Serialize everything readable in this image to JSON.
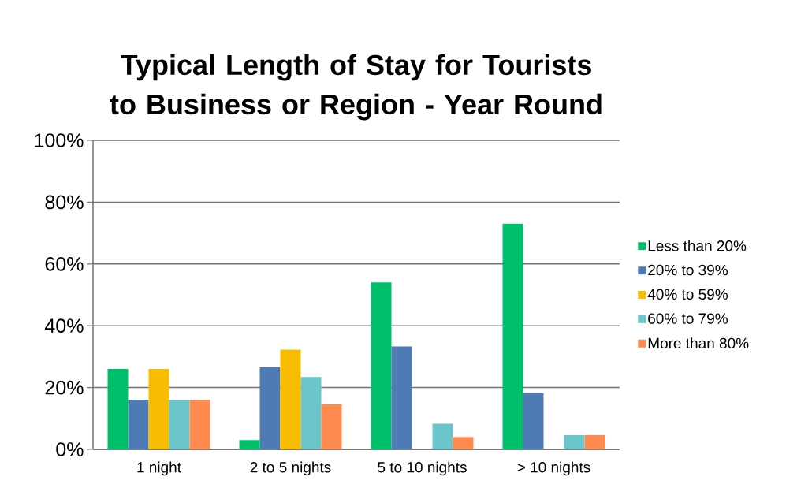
{
  "chart_data": {
    "type": "bar",
    "title": "Typical Length of Stay for Tourists to Business or Region - Year Round",
    "categories": [
      "1 night",
      "2 to 5 nights",
      "5 to 10 nights",
      "> 10 nights"
    ],
    "series": [
      {
        "name": "Less than 20%",
        "color": "#00bf6a",
        "values": [
          26,
          3,
          54,
          73
        ]
      },
      {
        "name": "20% to 39%",
        "color": "#4f7bb5",
        "values": [
          16,
          26.5,
          33.3,
          18.2
        ]
      },
      {
        "name": "40% to 59%",
        "color": "#f8bd00",
        "values": [
          26,
          32.3,
          0,
          0
        ]
      },
      {
        "name": "60% to 79%",
        "color": "#6bc6cb",
        "values": [
          16,
          23.4,
          8.3,
          4.6
        ]
      },
      {
        "name": "More than 80%",
        "color": "#ff8b50",
        "values": [
          16,
          14.6,
          4,
          4.6
        ]
      }
    ],
    "ylim": [
      0,
      100
    ],
    "yticks": [
      {
        "value": 0,
        "label": "0%"
      },
      {
        "value": 20,
        "label": "20%"
      },
      {
        "value": 40,
        "label": "40%"
      },
      {
        "value": 60,
        "label": "60%"
      },
      {
        "value": 80,
        "label": "80%"
      },
      {
        "value": 100,
        "label": "100%"
      }
    ],
    "grid": "y",
    "legend": "right"
  }
}
